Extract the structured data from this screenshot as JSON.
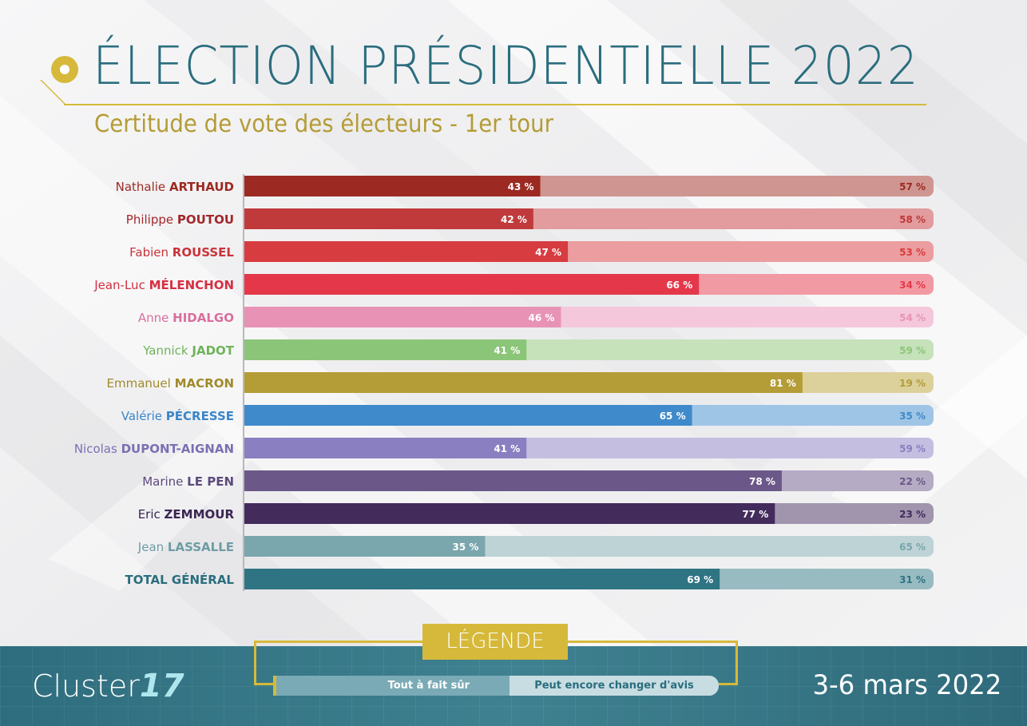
{
  "header": {
    "title": "ÉLECTION PRÉSIDENTIELLE 2022",
    "subtitle": "Certitude de vote des électeurs - 1er tour"
  },
  "footer": {
    "logo_name": "Cluster",
    "logo_number": "17",
    "date": "3-6 mars 2022"
  },
  "legend": {
    "title": "LÉGENDE",
    "items": [
      "Tout à fait sûr",
      "Peut encore changer d'avis"
    ]
  },
  "chart_data": {
    "type": "bar",
    "orientation": "horizontal",
    "stacked": true,
    "unit": "%",
    "xlim": [
      0,
      100
    ],
    "series": [
      {
        "name": "Tout à fait sûr",
        "values": [
          43,
          42,
          47,
          66,
          46,
          41,
          81,
          65,
          41,
          78,
          77,
          35,
          69
        ]
      },
      {
        "name": "Peut encore changer d'avis",
        "values": [
          57,
          58,
          53,
          34,
          54,
          59,
          19,
          35,
          59,
          22,
          23,
          65,
          31
        ]
      }
    ],
    "categories": [
      {
        "first": "Nathalie",
        "last": "ARTHAUD",
        "color": "#9c2a22",
        "light": "#cf9590",
        "label_color": "#9c2a22"
      },
      {
        "first": "Philippe",
        "last": "POUTOU",
        "color": "#c03a3c",
        "light": "#e29c9e",
        "label_color": "#a3262b"
      },
      {
        "first": "Fabien",
        "last": "ROUSSEL",
        "color": "#d73c40",
        "light": "#eb9d9f",
        "label_color": "#c8343a"
      },
      {
        "first": "Jean-Luc",
        "last": "MÉLENCHON",
        "color": "#e4384a",
        "light": "#f29aa3",
        "label_color": "#d42f42"
      },
      {
        "first": "Anne",
        "last": "HIDALGO",
        "color": "#e893b6",
        "light": "#f4c8da",
        "label_color": "#d96f9d"
      },
      {
        "first": "Yannick",
        "last": "JADOT",
        "color": "#8bc578",
        "light": "#c6e2bb",
        "label_color": "#6fb359"
      },
      {
        "first": "Emmanuel",
        "last": "MACRON",
        "color": "#b49c36",
        "light": "#dcd09b",
        "label_color": "#a08a2a"
      },
      {
        "first": "Valérie",
        "last": "PÉCRESSE",
        "color": "#3f8acb",
        "light": "#9fc5e6",
        "label_color": "#3a86c8"
      },
      {
        "first": "Nicolas",
        "last": "DUPONT-AIGNAN",
        "color": "#8a7fc0",
        "light": "#c4bee0",
        "label_color": "#7b70b3"
      },
      {
        "first": "Marine",
        "last": "LE PEN",
        "color": "#6b5888",
        "light": "#b5abc4",
        "label_color": "#5d4a7c"
      },
      {
        "first": "Eric",
        "last": "ZEMMOUR",
        "color": "#432b5c",
        "light": "#a195ae",
        "label_color": "#3a2552"
      },
      {
        "first": "Jean",
        "last": "LASSALLE",
        "color": "#7aa6ad",
        "light": "#bdd3d6",
        "label_color": "#6e9ca4"
      },
      {
        "first": "",
        "last": "TOTAL GÉNÉRAL",
        "color": "#2f7482",
        "light": "#98bbc2",
        "label_color": "#2a6d7e"
      }
    ]
  }
}
